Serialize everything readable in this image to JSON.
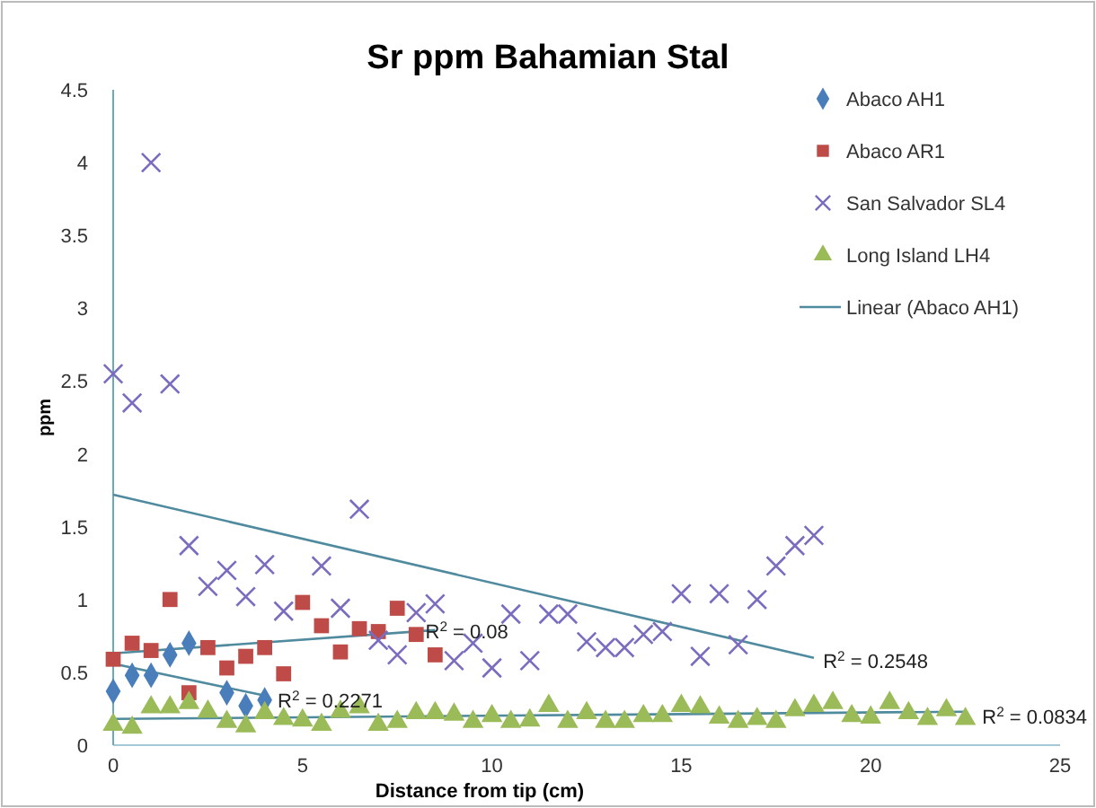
{
  "chart_data": {
    "type": "scatter",
    "title": "Sr ppm Bahamian Stal",
    "xlabel": "Distance from tip (cm)",
    "ylabel": "ppm",
    "xlim": [
      0,
      25
    ],
    "xticks": [
      0,
      5,
      10,
      15,
      20,
      25
    ],
    "ylim": [
      0,
      4.5
    ],
    "yticks": [
      0,
      0.5,
      1,
      1.5,
      2,
      2.5,
      3,
      3.5,
      4,
      4.5
    ],
    "grid": false,
    "legend": "top right",
    "series": [
      {
        "name": "Abaco AH1",
        "marker": "diamond",
        "color": "#4a7ebb",
        "x": [
          0,
          0.5,
          1,
          1.5,
          2,
          3,
          3.5,
          4
        ],
        "values": [
          0.37,
          0.48,
          0.48,
          0.62,
          0.7,
          0.36,
          0.27,
          0.31
        ]
      },
      {
        "name": "Abaco AR1",
        "marker": "square",
        "color": "#be4b48",
        "x": [
          0,
          0.5,
          1,
          1.5,
          2,
          2.5,
          3,
          3.5,
          4,
          4.5,
          5,
          5.5,
          6,
          6.5,
          7,
          7.5,
          8,
          8.5
        ],
        "values": [
          0.59,
          0.7,
          0.65,
          1.0,
          0.36,
          0.67,
          0.53,
          0.61,
          0.67,
          0.49,
          0.98,
          0.82,
          0.64,
          0.8,
          0.78,
          0.94,
          0.76,
          0.62
        ]
      },
      {
        "name": "San Salvador SL4",
        "marker": "cross",
        "color": "#7b6cc0",
        "x": [
          0,
          0.5,
          1,
          1.5,
          2,
          2.5,
          3,
          3.5,
          4,
          4.5,
          5.5,
          6,
          6.5,
          7,
          7.5,
          8,
          8.5,
          9,
          9.5,
          10,
          10.5,
          11,
          11.5,
          12,
          12.5,
          13,
          13.5,
          14,
          14.5,
          15,
          15.5,
          16,
          16.5,
          17,
          17.5,
          18,
          18.5
        ],
        "values": [
          2.55,
          2.35,
          4.0,
          2.48,
          1.37,
          1.09,
          1.2,
          1.02,
          1.24,
          0.92,
          1.23,
          0.94,
          1.62,
          0.72,
          0.62,
          0.91,
          0.97,
          0.58,
          0.7,
          0.53,
          0.9,
          0.58,
          0.9,
          0.9,
          0.71,
          0.67,
          0.67,
          0.76,
          0.78,
          1.04,
          0.61,
          1.04,
          0.69,
          1.0,
          1.23,
          1.37,
          1.44
        ]
      },
      {
        "name": "Long Island LH4",
        "marker": "triangle",
        "color": "#9bbb59",
        "x": [
          0,
          0.5,
          1,
          1.5,
          2,
          2.5,
          3,
          3.5,
          4,
          4.5,
          5,
          5.5,
          6,
          6.5,
          7,
          7.5,
          8,
          8.5,
          9,
          9.5,
          10,
          10.5,
          11,
          11.5,
          12,
          12.5,
          13,
          13.5,
          14,
          14.5,
          15,
          15.5,
          16,
          16.5,
          17,
          17.5,
          18,
          18.5,
          19,
          19.5,
          20,
          20.5,
          21,
          21.5,
          22,
          22.5
        ],
        "values": [
          0.14,
          0.12,
          0.26,
          0.26,
          0.29,
          0.23,
          0.16,
          0.13,
          0.22,
          0.18,
          0.17,
          0.14,
          0.23,
          0.26,
          0.14,
          0.16,
          0.22,
          0.22,
          0.21,
          0.16,
          0.2,
          0.16,
          0.17,
          0.27,
          0.16,
          0.22,
          0.16,
          0.16,
          0.2,
          0.2,
          0.27,
          0.26,
          0.19,
          0.16,
          0.18,
          0.16,
          0.24,
          0.27,
          0.29,
          0.2,
          0.19,
          0.29,
          0.22,
          0.18,
          0.24,
          0.18
        ]
      },
      {
        "name": "Linear (Abaco AH1)",
        "type": "line",
        "color": "#4f8a9e",
        "x": [
          0,
          4
        ],
        "values": [
          0.56,
          0.34
        ]
      },
      {
        "type": "line",
        "color": "#4f8a9e",
        "x": [
          0,
          8.5
        ],
        "values": [
          0.63,
          0.79
        ]
      },
      {
        "type": "line",
        "color": "#4f8a9e",
        "x": [
          0,
          18.5
        ],
        "values": [
          1.72,
          0.6
        ]
      },
      {
        "type": "line",
        "color": "#4f8a9e",
        "x": [
          0,
          22.5
        ],
        "values": [
          0.18,
          0.23
        ]
      }
    ],
    "annotations": [
      {
        "text": "R$^{2}$ = 0.2271",
        "x": 4.2,
        "y": 0.31
      },
      {
        "text": "R$^{2}$ = 0.08",
        "x": 8.1,
        "y": 0.78
      },
      {
        "text": "R$^{2}$ = 0.2548",
        "x": 18.6,
        "y": 0.58
      },
      {
        "text": "R$^{2}$ = 0.0834",
        "x": 22.8,
        "y": 0.2
      }
    ]
  }
}
